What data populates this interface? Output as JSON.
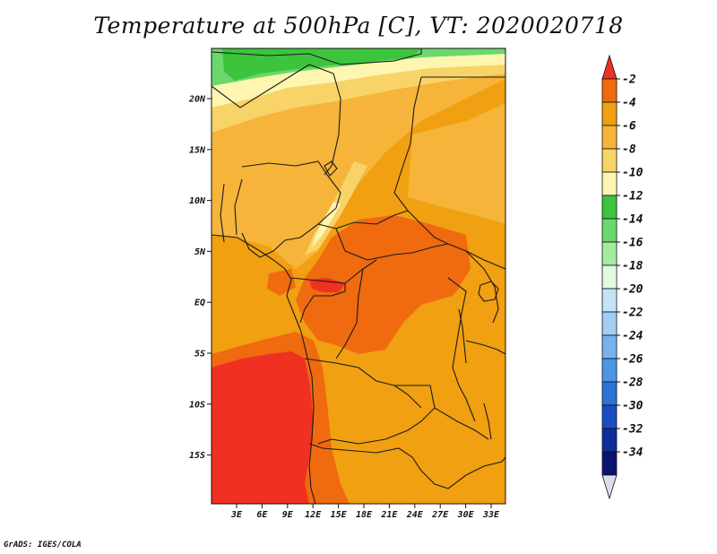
{
  "title": "Temperature at 500hPa [C], VT: 2020020718",
  "credit": "GrADS: IGES/COLA",
  "lat_ticks": [
    "20N",
    "15N",
    "10N",
    "5N",
    "EQ",
    "5S",
    "10S",
    "15S"
  ],
  "lon_ticks": [
    "3E",
    "6E",
    "9E",
    "12E",
    "15E",
    "18E",
    "21E",
    "24E",
    "27E",
    "30E",
    "33E"
  ],
  "colorbar": {
    "labels": [
      "-2",
      "-4",
      "-6",
      "-8",
      "-10",
      "-12",
      "-14",
      "-16",
      "-18",
      "-20",
      "-22",
      "-24",
      "-26",
      "-28",
      "-30",
      "-32",
      "-34"
    ],
    "colors": [
      "#f03020",
      "#f06a10",
      "#f0a010",
      "#f6b43a",
      "#f8d468",
      "#fef6b0",
      "#3cc43c",
      "#6ad86a",
      "#a6eaa0",
      "#e2fae0",
      "#c4e2f8",
      "#a2cef4",
      "#78b2ee",
      "#4c96e6",
      "#2c74d6",
      "#1a4ec0",
      "#0e2e9a",
      "#0a1470",
      "#dcdcf2"
    ]
  },
  "map_colors": {
    "deep_orange": "#f06a10",
    "orange": "#f0a010",
    "light_orange": "#f6b43a",
    "pale_yellow": "#f8d468",
    "cream": "#fef6b0",
    "green": "#3cc43c",
    "light_green": "#6ad86a",
    "red": "#f03020",
    "border": "#1a1a1a"
  }
}
